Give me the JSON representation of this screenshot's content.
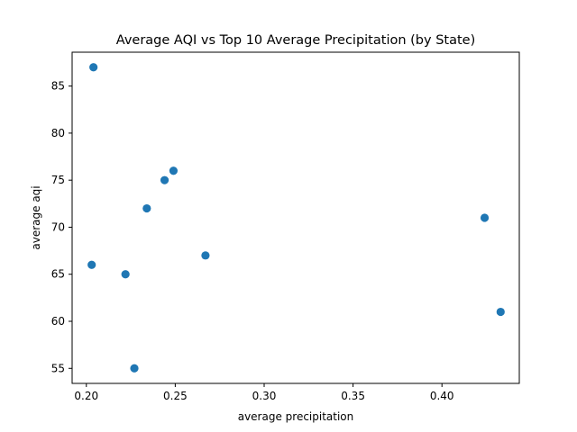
{
  "chart_data": {
    "type": "scatter",
    "title": "Average AQI vs Top 10 Average Precipitation (by State)",
    "xlabel": "average precipitation",
    "ylabel": "average aqi",
    "xlim": [
      0.192,
      0.4435
    ],
    "ylim": [
      53.4,
      88.6
    ],
    "xticks": [
      "0.20",
      "0.25",
      "0.30",
      "0.35",
      "0.40"
    ],
    "xtick_values": [
      0.2,
      0.25,
      0.3,
      0.35,
      0.4
    ],
    "yticks": [
      "55",
      "60",
      "65",
      "70",
      "75",
      "80",
      "85"
    ],
    "ytick_values": [
      55,
      60,
      65,
      70,
      75,
      80,
      85
    ],
    "grid": false,
    "marker_color": "#1f77b4",
    "points": [
      {
        "x": 0.204,
        "y": 87
      },
      {
        "x": 0.249,
        "y": 76
      },
      {
        "x": 0.244,
        "y": 75
      },
      {
        "x": 0.234,
        "y": 72
      },
      {
        "x": 0.424,
        "y": 71
      },
      {
        "x": 0.267,
        "y": 67
      },
      {
        "x": 0.203,
        "y": 66
      },
      {
        "x": 0.222,
        "y": 65
      },
      {
        "x": 0.433,
        "y": 61
      },
      {
        "x": 0.227,
        "y": 55
      }
    ]
  }
}
